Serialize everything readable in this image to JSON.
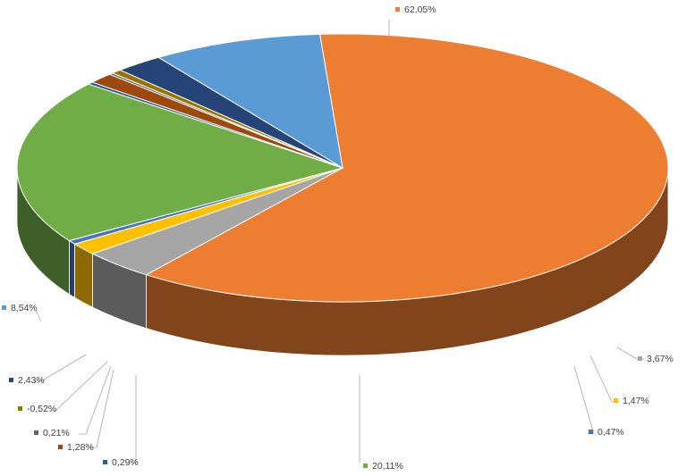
{
  "chart_data": {
    "type": "pie",
    "style": "3d",
    "title": "",
    "legend": "none",
    "slices": [
      {
        "label": "62,05%",
        "value": 62.05,
        "color": "#ED7D31"
      },
      {
        "label": "3,67%",
        "value": 3.67,
        "color": "#A5A5A5"
      },
      {
        "label": "1,47%",
        "value": 1.47,
        "color": "#FFC000"
      },
      {
        "label": "0,47%",
        "value": 0.47,
        "color": "#4472C4"
      },
      {
        "label": "20,11%",
        "value": 20.11,
        "color": "#70AD47"
      },
      {
        "label": "0,29%",
        "value": 0.29,
        "color": "#255E91"
      },
      {
        "label": "1,28%",
        "value": 1.28,
        "color": "#9E480E"
      },
      {
        "label": "0,21%",
        "value": 0.21,
        "color": "#636363"
      },
      {
        "label": "-0,52%",
        "value": -0.52,
        "color": "#997300"
      },
      {
        "label": "2,43%",
        "value": 2.43,
        "color": "#264478"
      },
      {
        "label": "8,54%",
        "value": 8.54,
        "color": "#5B9BD5"
      }
    ]
  }
}
